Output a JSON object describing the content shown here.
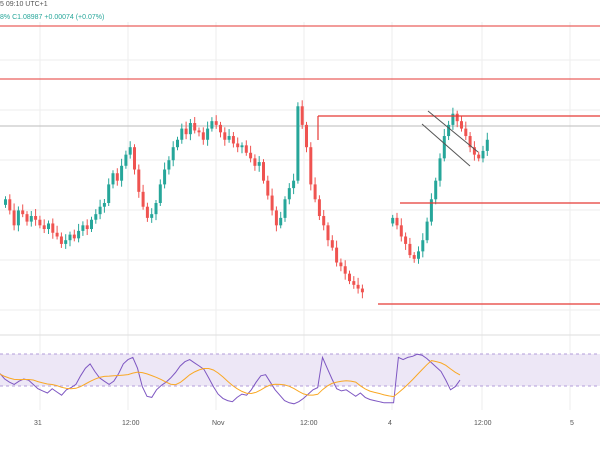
{
  "header": {
    "time_fragment": "5 09:10 UTC+1",
    "ohlc_prefix": "8%",
    "close_label": "C1.08987",
    "change_label": "+0.00074 (+0.07%)"
  },
  "x_axis": {
    "labels": [
      "31",
      "12:00",
      "Nov",
      "12:00",
      "4",
      "12:00",
      "5"
    ]
  },
  "colors": {
    "bull": "#26a69a",
    "bear": "#ef5350",
    "level_line": "#e53935",
    "channel": "#555555",
    "rsi_fill": "#ede7f6",
    "rsi_line": "#7e57c2",
    "rsi_signal": "#f9a825",
    "grid": "#eeeeee"
  },
  "chart_data": {
    "type": "candlestick",
    "title": "",
    "xlabel": "",
    "ylabel": "",
    "series": [
      {
        "name": "",
        "segments": [
          {
            "closes": [
              0.52,
              0.46,
              0.38,
              0.46,
              0.44,
              0.4,
              0.43,
              0.41,
              0.38,
              0.36,
              0.39,
              0.34,
              0.32,
              0.28,
              0.3,
              0.33,
              0.31,
              0.35,
              0.38,
              0.36,
              0.41,
              0.44,
              0.48,
              0.5,
              0.6,
              0.66,
              0.62,
              0.7,
              0.76,
              0.8,
              0.68,
              0.56,
              0.48,
              0.42,
              0.44,
              0.5,
              0.6,
              0.68,
              0.73,
              0.8,
              0.84,
              0.9,
              0.87,
              0.93,
              0.89,
              0.88,
              0.84,
              0.9,
              0.94,
              0.92,
              0.88,
              0.84,
              0.86,
              0.82,
              0.8,
              0.81,
              0.77,
              0.74,
              0.7,
              0.72,
              0.62,
              0.54,
              0.46,
              0.38,
              0.42,
              0.52,
              0.58,
              0.62,
              1.02,
              0.92,
              0.8,
              0.6,
              0.52,
              0.43,
              0.38,
              0.3,
              0.26,
              0.18,
              0.16,
              0.12,
              0.08,
              0.06,
              0.04,
              0.02
            ]
          },
          {
            "closes": [
              0.42,
              0.38,
              0.32,
              0.28,
              0.22,
              0.2,
              0.24,
              0.3,
              0.4,
              0.52,
              0.62,
              0.74,
              0.86,
              0.92,
              0.98,
              0.94,
              0.9,
              0.86,
              0.8,
              0.76,
              0.74,
              0.78,
              0.84
            ]
          }
        ]
      }
    ],
    "levels": [
      1.0,
      0.68,
      0.0,
      1.95,
      1.5
    ],
    "rsi": {
      "values": [
        0.6,
        0.5,
        0.44,
        0.4,
        0.46,
        0.5,
        0.48,
        0.4,
        0.32,
        0.28,
        0.24,
        0.32,
        0.26,
        0.2,
        0.3,
        0.34,
        0.4,
        0.56,
        0.7,
        0.78,
        0.64,
        0.52,
        0.46,
        0.4,
        0.46,
        0.6,
        0.78,
        0.86,
        0.9,
        0.7,
        0.36,
        0.18,
        0.16,
        0.3,
        0.38,
        0.44,
        0.52,
        0.62,
        0.74,
        0.82,
        0.86,
        0.8,
        0.74,
        0.68,
        0.52,
        0.36,
        0.22,
        0.14,
        0.1,
        0.08,
        0.16,
        0.22,
        0.2,
        0.3,
        0.44,
        0.56,
        0.58,
        0.44,
        0.3,
        0.2,
        0.1,
        0.06,
        0.04,
        0.08,
        0.14,
        0.22,
        0.3,
        0.34,
        0.9,
        0.7,
        0.5,
        0.32,
        0.28,
        0.3,
        0.24,
        0.18,
        0.24,
        0.16,
        0.12,
        0.1,
        0.08,
        0.06,
        0.06,
        0.06,
        0.9,
        0.86,
        0.9,
        0.92,
        0.96,
        0.94,
        0.88,
        0.8,
        0.72,
        0.64,
        0.48,
        0.3,
        0.36,
        0.48
      ]
    }
  }
}
